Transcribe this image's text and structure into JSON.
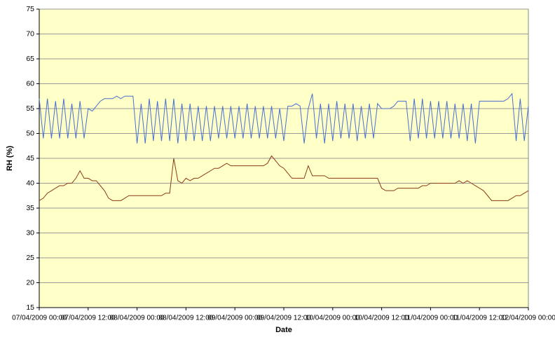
{
  "chart_data": {
    "type": "line",
    "x_label": "Date",
    "y_label": "RH (%)",
    "xticks": [
      "07/04/2009 00:00",
      "07/04/2009 12:00",
      "08/04/2009 00:00",
      "08/04/2009 12:00",
      "09/04/2009 00:00",
      "09/04/2009 12:00",
      "10/04/2009 00:00",
      "10/04/2009 12:00",
      "11/04/2009 00:00",
      "11/04/2009 12:00",
      "12/04/2009 00:00"
    ],
    "xlim": [
      "07/04/2009 00:00",
      "12/04/2009 00:00"
    ],
    "ylim": [
      15,
      75
    ],
    "yticks": [
      15,
      20,
      25,
      30,
      35,
      40,
      45,
      50,
      55,
      60,
      65,
      70,
      75
    ],
    "grid": true,
    "background": "#ffffc8",
    "x": [
      "07/04/2009 00:00",
      "07/04/2009 01:00",
      "07/04/2009 02:00",
      "07/04/2009 03:00",
      "07/04/2009 04:00",
      "07/04/2009 05:00",
      "07/04/2009 06:00",
      "07/04/2009 07:00",
      "07/04/2009 08:00",
      "07/04/2009 09:00",
      "07/04/2009 10:00",
      "07/04/2009 11:00",
      "07/04/2009 12:00",
      "07/04/2009 13:00",
      "07/04/2009 14:00",
      "07/04/2009 15:00",
      "07/04/2009 16:00",
      "07/04/2009 17:00",
      "07/04/2009 18:00",
      "07/04/2009 19:00",
      "07/04/2009 20:00",
      "07/04/2009 21:00",
      "07/04/2009 22:00",
      "07/04/2009 23:00",
      "08/04/2009 00:00",
      "08/04/2009 01:00",
      "08/04/2009 02:00",
      "08/04/2009 03:00",
      "08/04/2009 04:00",
      "08/04/2009 05:00",
      "08/04/2009 06:00",
      "08/04/2009 07:00",
      "08/04/2009 08:00",
      "08/04/2009 09:00",
      "08/04/2009 10:00",
      "08/04/2009 11:00",
      "08/04/2009 12:00",
      "08/04/2009 13:00",
      "08/04/2009 14:00",
      "08/04/2009 15:00",
      "08/04/2009 16:00",
      "08/04/2009 17:00",
      "08/04/2009 18:00",
      "08/04/2009 19:00",
      "08/04/2009 20:00",
      "08/04/2009 21:00",
      "08/04/2009 22:00",
      "08/04/2009 23:00",
      "09/04/2009 00:00",
      "09/04/2009 01:00",
      "09/04/2009 02:00",
      "09/04/2009 03:00",
      "09/04/2009 04:00",
      "09/04/2009 05:00",
      "09/04/2009 06:00",
      "09/04/2009 07:00",
      "09/04/2009 08:00",
      "09/04/2009 09:00",
      "09/04/2009 10:00",
      "09/04/2009 11:00",
      "09/04/2009 12:00",
      "09/04/2009 13:00",
      "09/04/2009 14:00",
      "09/04/2009 15:00",
      "09/04/2009 16:00",
      "09/04/2009 17:00",
      "09/04/2009 18:00",
      "09/04/2009 19:00",
      "09/04/2009 20:00",
      "09/04/2009 21:00",
      "09/04/2009 22:00",
      "09/04/2009 23:00",
      "10/04/2009 00:00",
      "10/04/2009 01:00",
      "10/04/2009 02:00",
      "10/04/2009 03:00",
      "10/04/2009 04:00",
      "10/04/2009 05:00",
      "10/04/2009 06:00",
      "10/04/2009 07:00",
      "10/04/2009 08:00",
      "10/04/2009 09:00",
      "10/04/2009 10:00",
      "10/04/2009 11:00",
      "10/04/2009 12:00",
      "10/04/2009 13:00",
      "10/04/2009 14:00",
      "10/04/2009 15:00",
      "10/04/2009 16:00",
      "10/04/2009 17:00",
      "10/04/2009 18:00",
      "10/04/2009 19:00",
      "10/04/2009 20:00",
      "10/04/2009 21:00",
      "10/04/2009 22:00",
      "10/04/2009 23:00",
      "11/04/2009 00:00",
      "11/04/2009 01:00",
      "11/04/2009 02:00",
      "11/04/2009 03:00",
      "11/04/2009 04:00",
      "11/04/2009 05:00",
      "11/04/2009 06:00",
      "11/04/2009 07:00",
      "11/04/2009 08:00",
      "11/04/2009 09:00",
      "11/04/2009 10:00",
      "11/04/2009 11:00",
      "11/04/2009 12:00",
      "11/04/2009 13:00",
      "11/04/2009 14:00",
      "11/04/2009 15:00",
      "11/04/2009 16:00",
      "11/04/2009 17:00",
      "11/04/2009 18:00",
      "11/04/2009 19:00",
      "11/04/2009 20:00",
      "11/04/2009 21:00",
      "11/04/2009 22:00",
      "11/04/2009 23:00",
      "12/04/2009 00:00"
    ],
    "series": [
      {
        "color": "#4a6fd0",
        "values": [
          57,
          49,
          57,
          49,
          56.5,
          49,
          57,
          49,
          56,
          49,
          56.5,
          49,
          55,
          54.5,
          55.5,
          56.5,
          57,
          57,
          57,
          57.5,
          57,
          57.5,
          57.5,
          57.5,
          48,
          56,
          48,
          57,
          48.5,
          56.5,
          48.5,
          57,
          48.5,
          57,
          48,
          56,
          48.5,
          56,
          48.5,
          55.5,
          48.5,
          55.5,
          48.5,
          55.5,
          49,
          55.5,
          49,
          55.5,
          49,
          55.5,
          49,
          56,
          49,
          55.5,
          49,
          55.5,
          49,
          55.5,
          49,
          55,
          48.5,
          55.5,
          55.5,
          56,
          55.5,
          48,
          55,
          58,
          49,
          56,
          48,
          56,
          48.5,
          56.5,
          49,
          56,
          49,
          56,
          48.5,
          55.5,
          49,
          56,
          49,
          56,
          55,
          55,
          55,
          55.5,
          56.5,
          56.5,
          56.5,
          48.5,
          57,
          49,
          57,
          49,
          56.5,
          49,
          56.5,
          49,
          56.5,
          49,
          56,
          49,
          56,
          48.5,
          56,
          48,
          56.5,
          56.5,
          56.5,
          56.5,
          56.5,
          56.5,
          56.5,
          57,
          58,
          48.5,
          57,
          48.5,
          55.5
        ]
      },
      {
        "color": "#8b3a1a",
        "values": [
          36.5,
          37,
          38,
          38.5,
          39,
          39.5,
          39.5,
          40,
          40,
          41,
          42.5,
          41,
          41,
          40.5,
          40.5,
          39.5,
          38.5,
          37,
          36.5,
          36.5,
          36.5,
          37,
          37.5,
          37.5,
          37.5,
          37.5,
          37.5,
          37.5,
          37.5,
          37.5,
          37.5,
          38,
          38,
          45,
          40.5,
          40,
          41,
          40.5,
          41,
          41,
          41.5,
          42,
          42.5,
          43,
          43,
          43.5,
          44,
          43.5,
          43.5,
          43.5,
          43.5,
          43.5,
          43.5,
          43.5,
          43.5,
          43.5,
          44,
          45.5,
          44.5,
          43.5,
          43,
          42,
          41,
          41,
          41,
          41,
          43.5,
          41.5,
          41.5,
          41.5,
          41.5,
          41,
          41,
          41,
          41,
          41,
          41,
          41,
          41,
          41,
          41,
          41,
          41,
          41,
          39,
          38.5,
          38.5,
          38.5,
          39,
          39,
          39,
          39,
          39,
          39,
          39.5,
          39.5,
          40,
          40,
          40,
          40,
          40,
          40,
          40,
          40.5,
          40,
          40.5,
          40,
          39.5,
          39,
          38.5,
          37.5,
          36.5,
          36.5,
          36.5,
          36.5,
          36.5,
          37,
          37.5,
          37.5,
          38,
          38.5
        ]
      }
    ]
  }
}
